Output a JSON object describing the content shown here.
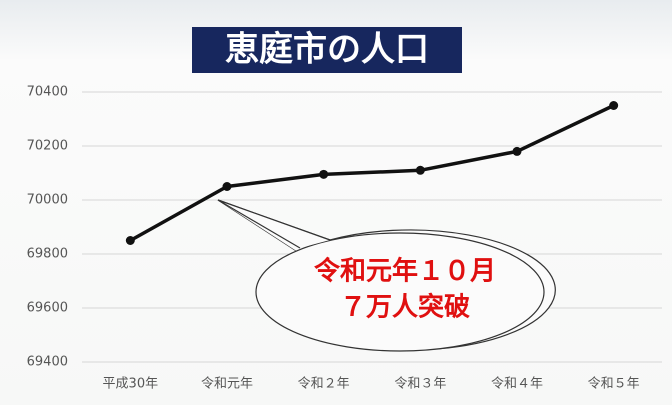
{
  "chart_data": {
    "type": "line",
    "title": "恵庭市の人口",
    "categories": [
      "平成30年",
      "令和元年",
      "令和２年",
      "令和３年",
      "令和４年",
      "令和５年"
    ],
    "series": [
      {
        "name": "人口",
        "color": "#111111",
        "values": [
          69850,
          70050,
          70095,
          70110,
          70180,
          70350
        ]
      }
    ],
    "ylim": [
      69400,
      70400
    ],
    "yticks": [
      69400,
      69600,
      69800,
      70000,
      70200,
      70400
    ],
    "grid": true,
    "annotation": [
      "令和元年１０月",
      "７万人突破"
    ]
  }
}
